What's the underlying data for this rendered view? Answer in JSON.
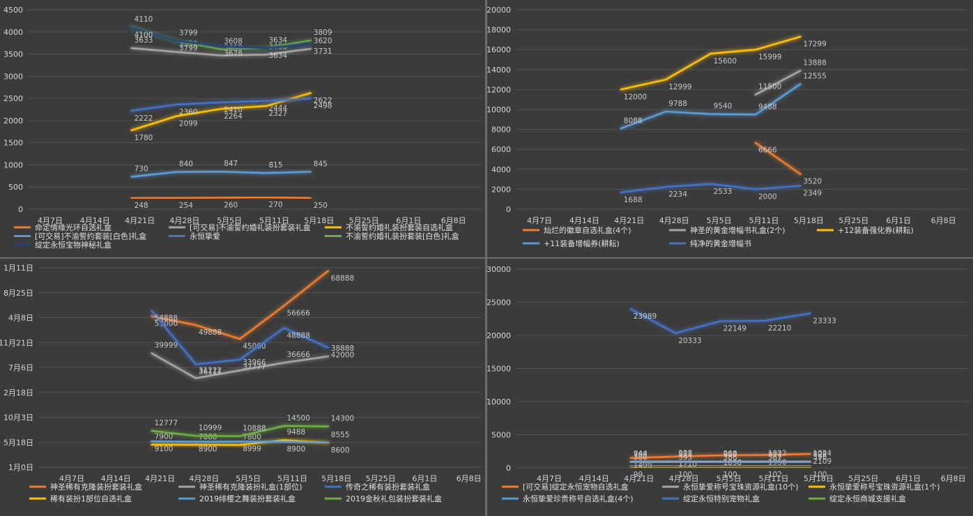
{
  "colors": {
    "orange": "#ed7d31",
    "gray": "#a5a5a5",
    "gold": "#ffc000",
    "lightblue": "#5b9bd5",
    "green": "#70ad47",
    "darkblue": "#4472c4",
    "navy": "#264478"
  },
  "chart_data": [
    {
      "type": "line",
      "categories": [
        "4月7日",
        "4月14日",
        "4月21日",
        "4月28日",
        "5月5日",
        "5月11日",
        "5月18日",
        "5月25日",
        "6月1日",
        "6月8日"
      ],
      "ylim": [
        0,
        4500
      ],
      "yticks": [
        "0",
        "500",
        "1000",
        "1500",
        "2000",
        "2500",
        "3000",
        "3500",
        "4000",
        "4500"
      ],
      "series": [
        {
          "name": "命定情缘光环自选礼盒",
          "color": "orange",
          "values": [
            null,
            null,
            248,
            254,
            260,
            270,
            250,
            null,
            null,
            null
          ]
        },
        {
          "name": "[可交易]不渝誓约婚礼装扮套装礼盒",
          "color": "gray",
          "values": [
            null,
            null,
            3633,
            3550,
            3469,
            3488,
            3620,
            null,
            null,
            null
          ]
        },
        {
          "name": "不渝誓约婚礼装扮套装自选礼盒",
          "color": "gold",
          "values": [
            null,
            null,
            1780,
            2099,
            2264,
            2327,
            2622,
            null,
            null,
            null
          ]
        },
        {
          "name": "[可交易]不渝誓约套装[白色]礼盒",
          "color": "lightblue",
          "values": [
            null,
            null,
            730,
            840,
            847,
            815,
            845,
            null,
            null,
            null
          ]
        },
        {
          "name": "永恒挚爱",
          "color": "darkblue",
          "values": [
            null,
            null,
            2222,
            2360,
            2410,
            2444,
            2498,
            null,
            null,
            null
          ]
        },
        {
          "name": "不渝誓约婚礼装扮套装[白色]礼盒",
          "color": "green",
          "values": [
            null,
            null,
            4110,
            3799,
            3608,
            3634,
            3809,
            null,
            null,
            null
          ]
        },
        {
          "name": "绽定永恒宝物神秘礼盒",
          "color": "navy",
          "values": [
            null,
            null,
            4100,
            3799,
            3678,
            3634,
            3731,
            null,
            null,
            null
          ]
        }
      ]
    },
    {
      "type": "line",
      "categories": [
        "4月7日",
        "4月14日",
        "4月21日",
        "4月28日",
        "5月5日",
        "5月11日",
        "5月18日",
        "5月25日",
        "6月1日",
        "6月8日"
      ],
      "ylim": [
        0,
        20000
      ],
      "yticks": [
        "0",
        "2000",
        "4000",
        "6000",
        "8000",
        "10000",
        "12000",
        "14000",
        "16000",
        "18000",
        "20000"
      ],
      "series": [
        {
          "name": "灿烂的徽章自选礼盒(4个)",
          "color": "orange",
          "values": [
            null,
            null,
            null,
            null,
            null,
            6666,
            3520,
            null,
            null,
            null
          ]
        },
        {
          "name": "神圣的黄金增幅书礼盒(2个)",
          "color": "gray",
          "values": [
            null,
            null,
            null,
            null,
            null,
            11500,
            13888,
            null,
            null,
            null
          ]
        },
        {
          "name": "+12装备强化券(耕耘)",
          "color": "gold",
          "values": [
            null,
            null,
            12000,
            12999,
            15600,
            15999,
            17299,
            null,
            null,
            null
          ]
        },
        {
          "name": "+11装备增幅券(耕耘)",
          "color": "lightblue",
          "values": [
            null,
            null,
            8088,
            9788,
            9540,
            9488,
            12555,
            null,
            null,
            null
          ]
        },
        {
          "name": "纯净的黄金增幅书",
          "color": "darkblue",
          "values": [
            null,
            null,
            1688,
            2234,
            2533,
            2000,
            2349,
            null,
            null,
            null
          ]
        }
      ]
    },
    {
      "type": "line",
      "categories": [
        "4月7日",
        "4月14日",
        "4月21日",
        "4月28日",
        "5月5日",
        "5月11日",
        "5月18日",
        "5月25日",
        "6月1日",
        "6月8日"
      ],
      "ylim": [
        0,
        70000
      ],
      "yticks": [
        "1月0日",
        "5月18日",
        "10月3日",
        "2月18日",
        "7月6日",
        "11月21日",
        "4月8日",
        "8月25日",
        "1月11日"
      ],
      "series": [
        {
          "name": "神圣稀有克隆装扮套装礼盒",
          "color": "orange",
          "values": [
            null,
            null,
            53000,
            49888,
            45000,
            56666,
            68888,
            null,
            null,
            null
          ]
        },
        {
          "name": "神圣稀有克隆装扮礼盒(1部位)",
          "color": "gray",
          "values": [
            null,
            null,
            39999,
            31222,
            33966,
            36666,
            38888,
            null,
            null,
            null
          ]
        },
        {
          "name": "传奇之稀有装扮套装礼盒",
          "color": "darkblue",
          "values": [
            null,
            null,
            54888,
            36111,
            37777,
            48888,
            42000,
            null,
            null,
            null
          ]
        },
        {
          "name": "稀有装扮1部位自选礼盒",
          "color": "gold",
          "values": [
            null,
            null,
            7900,
            7888,
            7800,
            9488,
            8555,
            null,
            null,
            null
          ]
        },
        {
          "name": "2019绯樱之舞装扮套装礼盒",
          "color": "lightblue",
          "values": [
            null,
            null,
            9100,
            8900,
            8999,
            8900,
            8600,
            null,
            null,
            null
          ]
        },
        {
          "name": "2019金秋礼包装扮套装礼盒",
          "color": "green",
          "values": [
            null,
            null,
            12777,
            10999,
            10888,
            14500,
            14300,
            null,
            null,
            null
          ]
        }
      ]
    },
    {
      "type": "line",
      "categories": [
        "4月7日",
        "4月14日",
        "4月21日",
        "4月28日",
        "5月5日",
        "5月11日",
        "5月18日",
        "5月25日",
        "6月1日",
        "6月8日"
      ],
      "ylim": [
        0,
        30000
      ],
      "yticks": [
        "0",
        "5000",
        "10000",
        "15000",
        "20000",
        "25000",
        "30000"
      ],
      "series": [
        {
          "name": "[可交易]绽定永恒宠物自选礼盒",
          "color": "orange",
          "values": [
            null,
            null,
            1499,
            1710,
            1898,
            1950,
            2109,
            null,
            null,
            null
          ]
        },
        {
          "name": "永恒挚爱称号宝珠资源礼盒(10个)",
          "color": "gray",
          "values": [
            null,
            null,
            944,
            988,
            968,
            1022,
            1024,
            null,
            null,
            null
          ]
        },
        {
          "name": "永恒挚爱称号宝珠资源礼盒(1个)",
          "color": "gold",
          "values": [
            null,
            null,
            99,
            100,
            100,
            102,
            100,
            null,
            null,
            null
          ]
        },
        {
          "name": "永恒挚爱珍贵称号自选礼盒(4个)",
          "color": "lightblue",
          "values": [
            null,
            null,
            788,
            877,
            829,
            811,
            828,
            null,
            null,
            null
          ]
        },
        {
          "name": "绽定永恒特别宠物礼盒",
          "color": "darkblue",
          "values": [
            null,
            null,
            23989,
            20333,
            22149,
            22210,
            23333,
            null,
            null,
            null
          ]
        },
        {
          "name": "绽定永恒商城支援礼盒",
          "color": "green",
          "values": [
            null,
            null,
            388,
            393,
            386,
            367,
            396,
            null,
            null,
            null
          ]
        }
      ]
    }
  ]
}
